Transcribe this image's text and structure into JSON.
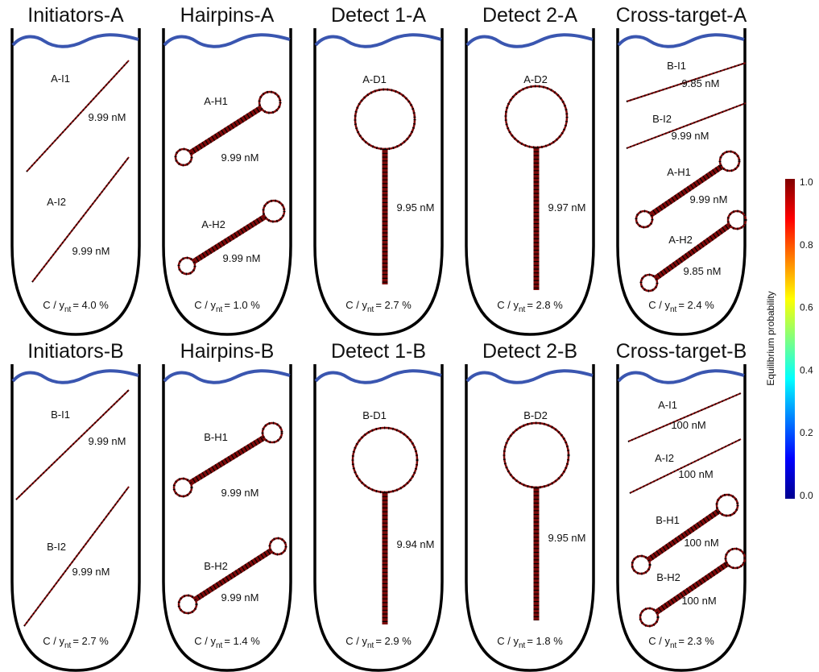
{
  "tubes": [
    {
      "title": "Initiators-A",
      "defect": {
        "symbol": "C / y",
        "subscript": "nt",
        "value": "= 4.0 %"
      },
      "strands": [
        {
          "name": "A-I1",
          "conc": "9.99 nM"
        },
        {
          "name": "A-I2",
          "conc": "9.99 nM"
        }
      ]
    },
    {
      "title": "Hairpins-A",
      "defect": {
        "symbol": "C / y",
        "subscript": "nt",
        "value": "= 1.0 %"
      },
      "strands": [
        {
          "name": "A-H1",
          "conc": "9.99 nM"
        },
        {
          "name": "A-H2",
          "conc": "9.99 nM"
        }
      ]
    },
    {
      "title": "Detect 1-A",
      "defect": {
        "symbol": "C / y",
        "subscript": "nt",
        "value": "= 2.7 %"
      },
      "strands": [
        {
          "name": "A-D1",
          "conc": "9.95 nM"
        }
      ]
    },
    {
      "title": "Detect 2-A",
      "defect": {
        "symbol": "C / y",
        "subscript": "nt",
        "value": "= 2.8 %"
      },
      "strands": [
        {
          "name": "A-D2",
          "conc": "9.97 nM"
        }
      ]
    },
    {
      "title": "Cross-target-A",
      "defect": {
        "symbol": "C / y",
        "subscript": "nt",
        "value": "= 2.4 %"
      },
      "strands": [
        {
          "name": "B-I1",
          "conc": "9.85 nM"
        },
        {
          "name": "B-I2",
          "conc": "9.99 nM"
        },
        {
          "name": "A-H1",
          "conc": "9.99 nM"
        },
        {
          "name": "A-H2",
          "conc": "9.85 nM"
        }
      ]
    },
    {
      "title": "Initiators-B",
      "defect": {
        "symbol": "C / y",
        "subscript": "nt",
        "value": "= 2.7 %"
      },
      "strands": [
        {
          "name": "B-I1",
          "conc": "9.99 nM"
        },
        {
          "name": "B-I2",
          "conc": "9.99 nM"
        }
      ]
    },
    {
      "title": "Hairpins-B",
      "defect": {
        "symbol": "C / y",
        "subscript": "nt",
        "value": "= 1.4 %"
      },
      "strands": [
        {
          "name": "B-H1",
          "conc": "9.99 nM"
        },
        {
          "name": "B-H2",
          "conc": "9.99 nM"
        }
      ]
    },
    {
      "title": "Detect 1-B",
      "defect": {
        "symbol": "C / y",
        "subscript": "nt",
        "value": "= 2.9 %"
      },
      "strands": [
        {
          "name": "B-D1",
          "conc": "9.94 nM"
        }
      ]
    },
    {
      "title": "Detect 2-B",
      "defect": {
        "symbol": "C / y",
        "subscript": "nt",
        "value": "= 1.8 %"
      },
      "strands": [
        {
          "name": "B-D2",
          "conc": "9.95 nM"
        }
      ]
    },
    {
      "title": "Cross-target-B",
      "defect": {
        "symbol": "C / y",
        "subscript": "nt",
        "value": "= 2.3 %"
      },
      "strands": [
        {
          "name": "A-I1",
          "conc": "100 nM"
        },
        {
          "name": "A-I2",
          "conc": "100 nM"
        },
        {
          "name": "B-H1",
          "conc": "100 nM"
        },
        {
          "name": "B-H2",
          "conc": "100 nM"
        }
      ]
    }
  ],
  "colorbar": {
    "label": "Equilibrium probability",
    "ticks": [
      "1.0",
      "0.8",
      "0.6",
      "0.4",
      "0.2",
      "0.0"
    ]
  }
}
